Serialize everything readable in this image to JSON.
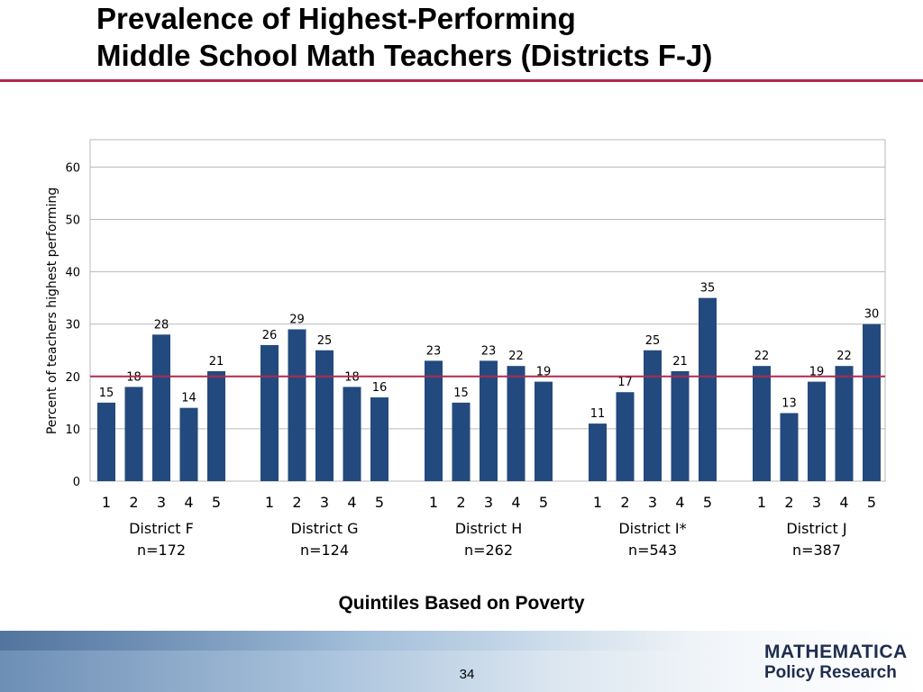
{
  "slide": {
    "title_line1": "Prevalence of Highest-Performing",
    "title_line2": "Middle School Math Teachers (Districts F-J)",
    "page_number": "34",
    "logo_line1": "MATHEMATICA",
    "logo_line2": "Policy Research"
  },
  "colors": {
    "bar": "#234a7e",
    "reference_line": "#b5284b",
    "grid": "#b9b9b9",
    "title_rule": "#b5284b"
  },
  "chart_data": {
    "type": "bar",
    "ylabel": "Percent of teachers highest performing",
    "xlabel": "Quintiles Based on Poverty",
    "ylim": [
      0,
      65
    ],
    "yticks": [
      0,
      10,
      20,
      30,
      40,
      50,
      60
    ],
    "grid": true,
    "reference_line": 20,
    "groups": [
      {
        "name": "District F",
        "n": "n=172",
        "categories": [
          "1",
          "2",
          "3",
          "4",
          "5"
        ],
        "values": [
          15,
          18,
          28,
          14,
          21
        ]
      },
      {
        "name": "District G",
        "n": "n=124",
        "categories": [
          "1",
          "2",
          "3",
          "4",
          "5"
        ],
        "values": [
          26,
          29,
          25,
          18,
          16
        ]
      },
      {
        "name": "District H",
        "n": "n=262",
        "categories": [
          "1",
          "2",
          "3",
          "4",
          "5"
        ],
        "values": [
          23,
          15,
          23,
          22,
          19
        ]
      },
      {
        "name": "District I*",
        "n": "n=543",
        "categories": [
          "1",
          "2",
          "3",
          "4",
          "5"
        ],
        "values": [
          11,
          17,
          25,
          21,
          35
        ]
      },
      {
        "name": "District J",
        "n": "n=387",
        "categories": [
          "1",
          "2",
          "3",
          "4",
          "5"
        ],
        "values": [
          22,
          13,
          19,
          22,
          30
        ]
      }
    ]
  }
}
